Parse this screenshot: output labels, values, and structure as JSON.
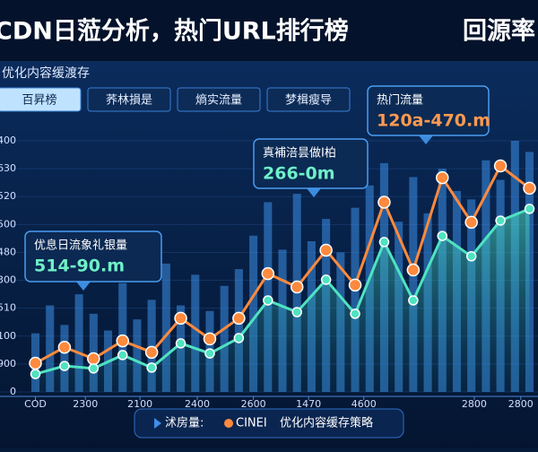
{
  "chart_data": {
    "type": "line",
    "title": "CDN日蒞分析，热门URL排行榜",
    "title_right": "回源率",
    "subtitle": "优化内容缓渡存",
    "tabs": [
      "百昇榜",
      "荞林損是",
      "熵实流量",
      "梦楫瘦导"
    ],
    "x": [
      0,
      1,
      2,
      3,
      4,
      5,
      6,
      7,
      8,
      9,
      10,
      11,
      12,
      13,
      14,
      15,
      16,
      17
    ],
    "xlim": [
      -0.2,
      17.2
    ],
    "xticks": [
      {
        "value": 0,
        "label": "COD"
      },
      {
        "value": 1.72,
        "label": "2300"
      },
      {
        "value": 3.6,
        "label": "2100"
      },
      {
        "value": 5.57,
        "label": "2400"
      },
      {
        "value": 7.5,
        "label": "2600"
      },
      {
        "value": 9.4,
        "label": "1470"
      },
      {
        "value": 11.3,
        "label": "4600"
      },
      {
        "value": 15.1,
        "label": "2800"
      },
      {
        "value": 16.7,
        "label": "2800"
      }
    ],
    "ylim": [
      0,
      9
    ],
    "yticks": [
      {
        "value": 0,
        "label": "0"
      },
      {
        "value": 1,
        "label": "900"
      },
      {
        "value": 2,
        "label": "100"
      },
      {
        "value": 3,
        "label": "510"
      },
      {
        "value": 4,
        "label": "300"
      },
      {
        "value": 5,
        "label": "480"
      },
      {
        "value": 6,
        "label": "500"
      },
      {
        "value": 7,
        "label": "520"
      },
      {
        "value": 8,
        "label": "630"
      },
      {
        "value": 9,
        "label": "400"
      }
    ],
    "grid": true,
    "bars": {
      "name": "沭房量:",
      "color": "#3d8fe8",
      "x": [
        0,
        0.5,
        1,
        1.5,
        2,
        2.5,
        3,
        3.5,
        4,
        4.5,
        5,
        5.5,
        6,
        6.5,
        7,
        7.5,
        8,
        8.5,
        9,
        9.5,
        10,
        10.5,
        11,
        11.5,
        12,
        12.5,
        13,
        13.5,
        14,
        14.5,
        15,
        15.5,
        16,
        16.5,
        17
      ],
      "values": [
        2.1,
        3.1,
        2.4,
        3.5,
        2.8,
        2.2,
        3.9,
        2.6,
        3.3,
        4.6,
        3.1,
        4.2,
        2.9,
        3.8,
        4.4,
        5.6,
        6.8,
        5.1,
        7.1,
        5.4,
        6.2,
        5.0,
        6.6,
        7.4,
        8.2,
        6.1,
        7.7,
        6.4,
        8.0,
        7.2,
        6.9,
        8.3,
        7.6,
        9.0,
        8.6
      ]
    },
    "series": [
      {
        "name": "CINEI",
        "color": "#ff8a3d",
        "values": [
          1.03,
          1.6,
          1.19,
          1.83,
          1.42,
          2.64,
          1.9,
          2.64,
          4.24,
          3.76,
          5.08,
          3.83,
          6.8,
          4.37,
          7.68,
          6.08,
          8.1,
          7.3
        ]
      },
      {
        "color": "#4fe3c1",
        "values": [
          0.64,
          0.93,
          0.84,
          1.32,
          0.87,
          1.74,
          1.38,
          1.93,
          3.28,
          2.86,
          4.02,
          2.8,
          5.37,
          3.28,
          5.59,
          4.86,
          6.14,
          6.56
        ]
      }
    ],
    "legend_note": "优化内容缓存策略",
    "annotations": [
      {
        "title": "优息日流象礼银量",
        "value": "514-90.m"
      },
      {
        "title": "真補涪昙做I柏",
        "value": "266-0m"
      },
      {
        "title": "热门流量",
        "value": "120a-470.m"
      }
    ]
  }
}
